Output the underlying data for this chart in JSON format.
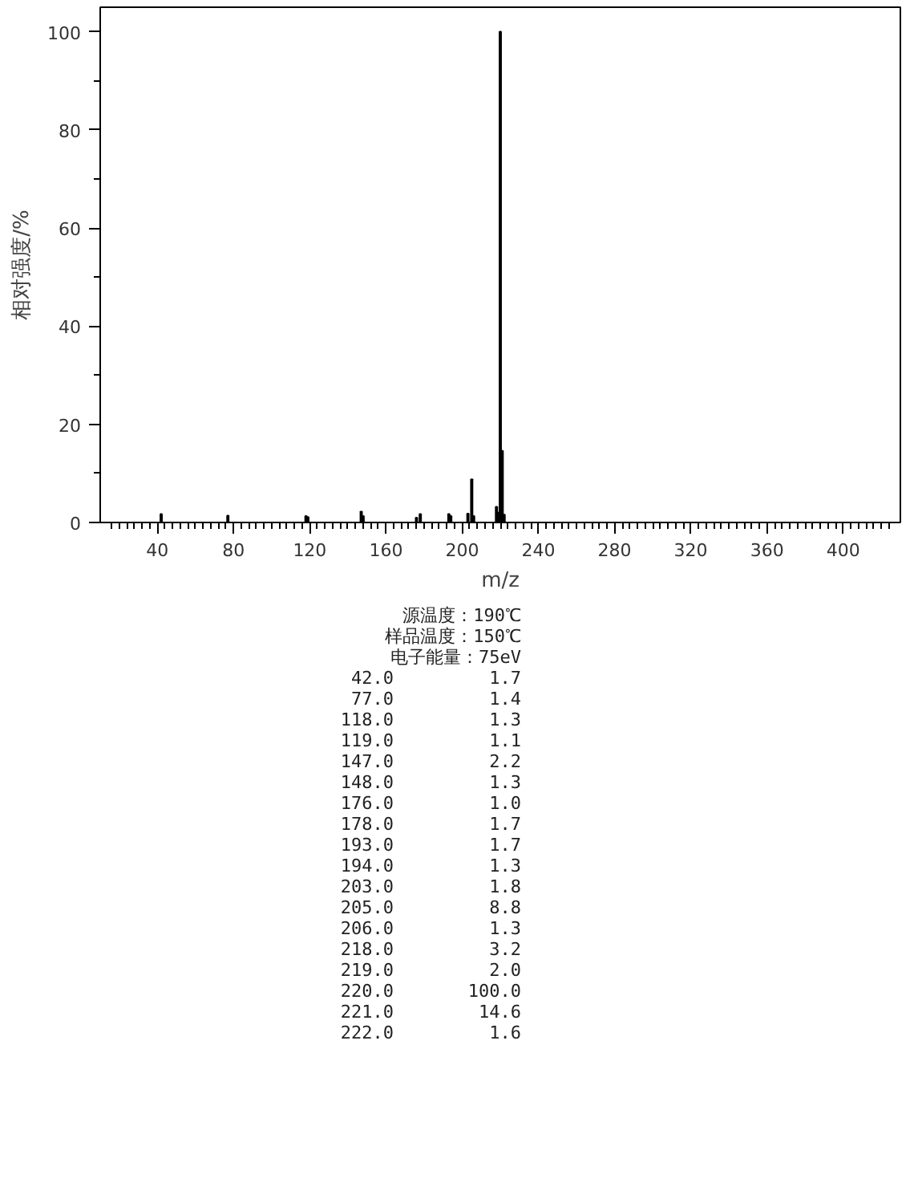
{
  "chart_data": {
    "type": "bar",
    "xlabel": "m/z",
    "ylabel": "相对强度/%",
    "x": [
      42.0,
      77.0,
      118.0,
      119.0,
      147.0,
      148.0,
      176.0,
      178.0,
      193.0,
      194.0,
      203.0,
      205.0,
      206.0,
      218.0,
      219.0,
      220.0,
      221.0,
      222.0
    ],
    "values": [
      1.7,
      1.4,
      1.3,
      1.1,
      2.2,
      1.3,
      1.0,
      1.7,
      1.7,
      1.3,
      1.8,
      8.8,
      1.3,
      3.2,
      2.0,
      100.0,
      14.6,
      1.6
    ],
    "color": "#000000",
    "xlim": [
      10,
      430
    ],
    "ylim": [
      0,
      105
    ],
    "xticks": [
      {
        "value": 16,
        "label": null
      },
      {
        "value": 20,
        "label": null
      },
      {
        "value": 24,
        "label": null
      },
      {
        "value": 28,
        "label": null
      },
      {
        "value": 32,
        "label": null
      },
      {
        "value": 36,
        "label": null
      },
      40,
      {
        "value": 44,
        "label": null
      },
      {
        "value": 48,
        "label": null
      },
      {
        "value": 52,
        "label": null
      },
      {
        "value": 56,
        "label": null
      },
      {
        "value": 60,
        "label": null
      },
      {
        "value": 64,
        "label": null
      },
      {
        "value": 68,
        "label": null
      },
      {
        "value": 72,
        "label": null
      },
      {
        "value": 76,
        "label": null
      },
      80,
      {
        "value": 84,
        "label": null
      },
      {
        "value": 88,
        "label": null
      },
      {
        "value": 92,
        "label": null
      },
      {
        "value": 96,
        "label": null
      },
      {
        "value": 100,
        "label": null
      },
      {
        "value": 104,
        "label": null
      },
      {
        "value": 108,
        "label": null
      },
      {
        "value": 112,
        "label": null
      },
      {
        "value": 116,
        "label": null
      },
      120,
      {
        "value": 124,
        "label": null
      },
      {
        "value": 128,
        "label": null
      },
      {
        "value": 132,
        "label": null
      },
      {
        "value": 136,
        "label": null
      },
      {
        "value": 140,
        "label": null
      },
      {
        "value": 144,
        "label": null
      },
      {
        "value": 148,
        "label": null
      },
      {
        "value": 152,
        "label": null
      },
      {
        "value": 156,
        "label": null
      },
      160,
      {
        "value": 164,
        "label": null
      },
      {
        "value": 168,
        "label": null
      },
      {
        "value": 172,
        "label": null
      },
      {
        "value": 176,
        "label": null
      },
      {
        "value": 180,
        "label": null
      },
      {
        "value": 184,
        "label": null
      },
      {
        "value": 188,
        "label": null
      },
      {
        "value": 192,
        "label": null
      },
      {
        "value": 196,
        "label": null
      },
      200,
      {
        "value": 204,
        "label": null
      },
      {
        "value": 208,
        "label": null
      },
      {
        "value": 212,
        "label": null
      },
      {
        "value": 216,
        "label": null
      },
      {
        "value": 220,
        "label": null
      },
      {
        "value": 224,
        "label": null
      },
      {
        "value": 228,
        "label": null
      },
      {
        "value": 232,
        "label": null
      },
      {
        "value": 236,
        "label": null
      },
      240,
      {
        "value": 244,
        "label": null
      },
      {
        "value": 248,
        "label": null
      },
      {
        "value": 252,
        "label": null
      },
      {
        "value": 256,
        "label": null
      },
      {
        "value": 260,
        "label": null
      },
      {
        "value": 264,
        "label": null
      },
      {
        "value": 268,
        "label": null
      },
      {
        "value": 272,
        "label": null
      },
      {
        "value": 276,
        "label": null
      },
      280,
      {
        "value": 284,
        "label": null
      },
      {
        "value": 288,
        "label": null
      },
      {
        "value": 292,
        "label": null
      },
      {
        "value": 296,
        "label": null
      },
      {
        "value": 300,
        "label": null
      },
      {
        "value": 304,
        "label": null
      },
      {
        "value": 308,
        "label": null
      },
      {
        "value": 312,
        "label": null
      },
      {
        "value": 316,
        "label": null
      },
      320,
      {
        "value": 324,
        "label": null
      },
      {
        "value": 328,
        "label": null
      },
      {
        "value": 332,
        "label": null
      },
      {
        "value": 336,
        "label": null
      },
      {
        "value": 340,
        "label": null
      },
      {
        "value": 344,
        "label": null
      },
      {
        "value": 348,
        "label": null
      },
      {
        "value": 352,
        "label": null
      },
      {
        "value": 356,
        "label": null
      },
      360,
      {
        "value": 364,
        "label": null
      },
      {
        "value": 368,
        "label": null
      },
      {
        "value": 372,
        "label": null
      },
      {
        "value": 376,
        "label": null
      },
      {
        "value": 380,
        "label": null
      },
      {
        "value": 384,
        "label": null
      },
      {
        "value": 388,
        "label": null
      },
      {
        "value": 392,
        "label": null
      },
      {
        "value": 396,
        "label": null
      },
      400,
      {
        "value": 404,
        "label": null
      },
      {
        "value": 408,
        "label": null
      },
      {
        "value": 412,
        "label": null
      },
      {
        "value": 416,
        "label": null
      },
      {
        "value": 420,
        "label": null
      },
      {
        "value": 424,
        "label": null
      }
    ],
    "yticks": [
      0,
      {
        "value": 10,
        "label": null
      },
      20,
      {
        "value": 30,
        "label": null
      },
      40,
      {
        "value": 50,
        "label": null
      },
      60,
      {
        "value": 70,
        "label": null
      },
      80,
      {
        "value": 90,
        "label": null
      },
      100
    ],
    "grid": false,
    "annotations": [
      "源温度：190℃",
      "样品温度：150℃",
      "电子能量：75eV",
      "42.0         1.7",
      "77.0         1.4",
      "118.0         1.3",
      "119.0         1.1",
      "147.0         2.2",
      "148.0         1.3",
      "176.0         1.0",
      "178.0         1.7",
      "193.0         1.7",
      "194.0         1.3",
      "203.0         1.8",
      "205.0         8.8",
      "206.0         1.3",
      "218.0         3.2",
      "219.0         2.0",
      "220.0       100.0",
      "221.0        14.6",
      "222.0         1.6"
    ]
  }
}
